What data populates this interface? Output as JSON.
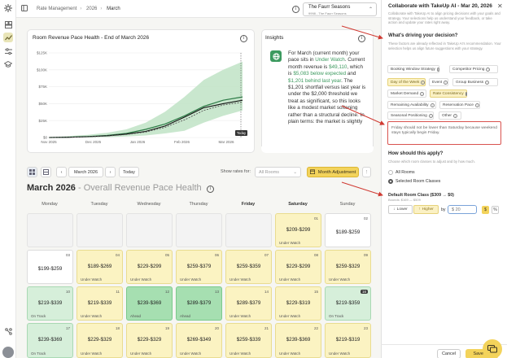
{
  "colors": {
    "accent_yellow": "#f3d35b",
    "green_text": "#3c9a5f",
    "annotation_red": "#d9534f"
  },
  "rail": {
    "icons": [
      "logo-icon",
      "layout-icon",
      "chart-icon",
      "sliders-icon",
      "graduation-cap-icon",
      "connect-icon"
    ]
  },
  "breadcrumb": {
    "items": [
      "Rate Management",
      "2026",
      "March"
    ]
  },
  "property": {
    "name": "The Faurr Seasons",
    "id": "9998 - The Faurr Seasons"
  },
  "chart_card": {
    "title": "Room Revenue Pace Health - End of March 2026"
  },
  "chart_data": {
    "type": "line",
    "title": "Room Revenue Pace Health - End of March 2026",
    "x_ticks": [
      "Nov 2025",
      "Dec 2025",
      "Jan 2026",
      "Feb 2026",
      "Mar 2026"
    ],
    "y_ticks": [
      "$0",
      "$25K",
      "$50K",
      "$75K",
      "$100K",
      "$125K"
    ],
    "ylim": [
      0,
      125000
    ],
    "annotation": "Today",
    "series": [
      {
        "values": [
          0,
          500,
          1500,
          3000,
          6000,
          12000,
          20000,
          32000,
          46000,
          55000,
          60000
        ]
      },
      {
        "values": [
          0,
          400,
          1200,
          2500,
          5000,
          9000,
          17000,
          30000,
          44000,
          50000,
          55000
        ]
      },
      {
        "values": [
          0,
          300,
          1000,
          2200,
          4500,
          8000,
          15000,
          26000,
          40000,
          48000,
          52000
        ]
      }
    ],
    "band": {
      "upper": [
        0,
        2000,
        4000,
        7000,
        12000,
        22000,
        38000,
        60000,
        85000,
        100000,
        112000
      ],
      "lower": [
        0,
        0,
        200,
        600,
        1500,
        3000,
        6000,
        10000,
        22000,
        32000,
        40000
      ]
    }
  },
  "insights": {
    "title": "Insights",
    "p1": "For March (current month) your pace sits in ",
    "status": "Under Watch",
    "p2": ". Current month revenue is ",
    "revenue": "$49,110",
    "p3": ", which is ",
    "below": "$5,083 below expected",
    "p4": " and ",
    "behind": "$1,201 behind last year",
    "p5": ". The $1,201 shortfall versus last year is under the $2,000 threshold we treat as significant, so this looks like a modest market softening rather than a structural decline. In plain terms: the market is slightly"
  },
  "toolbar": {
    "month_label": "March 2026",
    "today_label": "Today",
    "rates_for_label": "Show rates for:",
    "rates_for_value": "All Rooms",
    "month_adjustment_label": "Month Adjustment",
    "more_label": "⋮"
  },
  "calendar": {
    "title": "March 2026",
    "subtitle": " - Overall Revenue Pace Health",
    "weekdays": [
      "Monday",
      "Tuesday",
      "Wednesday",
      "Thursday",
      "Friday",
      "Saturday",
      "Sunday"
    ]
  },
  "cells": [
    [
      "",
      "",
      "",
      "",
      "",
      "$209-$299",
      "$189-$259"
    ],
    [
      "$199-$259",
      "$189-$269",
      "$229-$299",
      "$259-$379",
      "$259-$359",
      "$229-$299",
      "$259-$329"
    ],
    [
      "$219-$339",
      "$219-$339",
      "$239-$369",
      "$289-$379",
      "$289-$379",
      "$229-$319",
      "$219-$359"
    ],
    [
      "$239-$369",
      "$229-$329",
      "$229-$329",
      "$269-$349",
      "$259-$339",
      "$239-$369",
      "$219-$319"
    ]
  ],
  "cell_days": [
    [
      "",
      "",
      "",
      "",
      "",
      "01",
      "02"
    ],
    [
      "03",
      "04",
      "05",
      "06",
      "07",
      "08",
      "09"
    ],
    [
      "10",
      "11",
      "12",
      "13",
      "14",
      "15",
      "16"
    ],
    [
      "17",
      "18",
      "19",
      "20",
      "21",
      "22",
      "23"
    ]
  ],
  "cell_status": [
    [
      "",
      "",
      "",
      "",
      "",
      "Under Watch",
      ""
    ],
    [
      "",
      "Under Watch",
      "Under Watch",
      "Under Watch",
      "Under Watch",
      "Under Watch",
      "Under Watch"
    ],
    [
      "On Track",
      "Under Watch",
      "Ahead",
      "Ahead",
      "Under Watch",
      "Under Watch",
      "On Track"
    ],
    [
      "On Track",
      "Under Watch",
      "Under Watch",
      "Under Watch",
      "Under Watch",
      "Under Watch",
      "Under Watch"
    ]
  ],
  "panel": {
    "title": "Collaborate with TakeUp AI - Mar 20, 2026",
    "description": "Collaborate with TakeUp AI to align pricing decisions with your goals and strategy. Your selections help us understand your feedback, or take action and update your rates right away.",
    "q1": "What's driving your decision?",
    "q1_sub": "These factors are already reflected in TakeUp AI's recommendation. Your selection helps us align future suggestions with your strategy.",
    "chips": [
      "Booking Window Strategy",
      "Competitor Pricing",
      "Day of the Week",
      "Event",
      "Group Business",
      "Market Demand",
      "Rate Consistency",
      "Remaining Availability",
      "Reservation Pace",
      "Seasonal Positioning",
      "Other"
    ],
    "reason_text": "Friday should not be lower than Saturday because weekend stays typically begin Friday.",
    "q2": "How should this apply?",
    "q2_sub": "Choose which room classes to adjust and by how much.",
    "opt_all": "All Rooms",
    "opt_selected": "Selected Room Classes",
    "room_class": "Default Room Class ($309 → $0)",
    "bounds": "Bounds: $169 — $509",
    "lower_label": "Lower",
    "higher_label": "Higher",
    "by_label": "by",
    "amount_placeholder": "$ 20",
    "unit_dollar": "$",
    "unit_pct": "%",
    "cancel_label": "Cancel",
    "save_label": "Save Ch"
  }
}
